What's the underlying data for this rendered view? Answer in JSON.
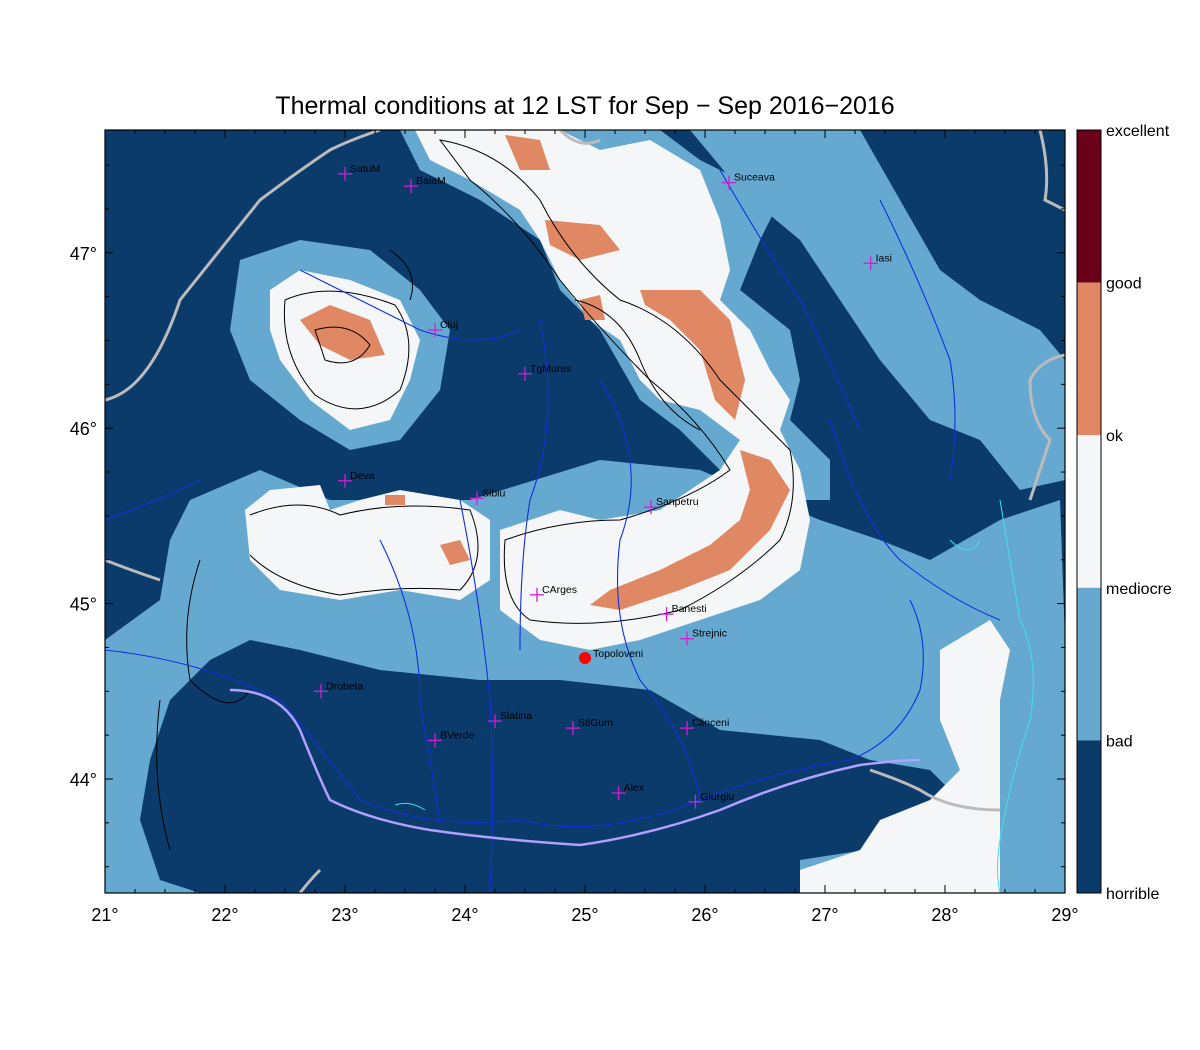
{
  "title": "Thermal conditions at 12 LST for Sep − Sep  2016−2016",
  "colors": {
    "horrible": "#0b3b6b",
    "bad": "#66a9d0",
    "mediocre": "#f4f6f8",
    "ok": "#e08763",
    "good": "#6b0019",
    "river": "#1030e0",
    "border": "#bbbbbb",
    "coast": "#40e0e8",
    "contour": "#000000",
    "city_marker": "#d020d0",
    "highlight": "#ff0000"
  },
  "legend": {
    "labels": [
      "excellent",
      "good",
      "ok",
      "mediocre",
      "bad",
      "horrible"
    ],
    "bands": [
      "good",
      "ok",
      "mediocre",
      "bad",
      "horrible"
    ]
  },
  "axes": {
    "lon_ticks": [
      "21°",
      "22°",
      "23°",
      "24°",
      "25°",
      "26°",
      "27°",
      "28°",
      "29°"
    ],
    "lat_ticks": [
      "47°",
      "46°",
      "45°",
      "44°"
    ]
  },
  "cities": [
    {
      "name": "SatuM",
      "lon": 23.0,
      "lat": 47.45
    },
    {
      "name": "BaiaM",
      "lon": 23.55,
      "lat": 47.38
    },
    {
      "name": "Suceava",
      "lon": 26.2,
      "lat": 47.4
    },
    {
      "name": "Iasi",
      "lon": 27.38,
      "lat": 46.94
    },
    {
      "name": "Cluj",
      "lon": 23.75,
      "lat": 46.56
    },
    {
      "name": "TgMures",
      "lon": 24.5,
      "lat": 46.31
    },
    {
      "name": "Deva",
      "lon": 23.0,
      "lat": 45.7
    },
    {
      "name": "Sibiu",
      "lon": 24.1,
      "lat": 45.6
    },
    {
      "name": "Sanpetru",
      "lon": 25.55,
      "lat": 45.55
    },
    {
      "name": "CArges",
      "lon": 24.6,
      "lat": 45.05
    },
    {
      "name": "Banesti",
      "lon": 25.68,
      "lat": 44.94
    },
    {
      "name": "Strejnic",
      "lon": 25.85,
      "lat": 44.8
    },
    {
      "name": "Drobeta",
      "lon": 22.8,
      "lat": 44.5
    },
    {
      "name": "Slatina",
      "lon": 24.25,
      "lat": 44.33
    },
    {
      "name": "StlGum",
      "lon": 24.9,
      "lat": 44.29
    },
    {
      "name": "BVerde",
      "lon": 23.75,
      "lat": 44.22
    },
    {
      "name": "Clinceni",
      "lon": 25.85,
      "lat": 44.29
    },
    {
      "name": "Alex",
      "lon": 25.28,
      "lat": 43.92
    },
    {
      "name": "Giurgiu",
      "lon": 25.92,
      "lat": 43.87
    }
  ],
  "highlight_point": {
    "name": "Topoloveni",
    "lon": 25.0,
    "lat": 44.69
  }
}
